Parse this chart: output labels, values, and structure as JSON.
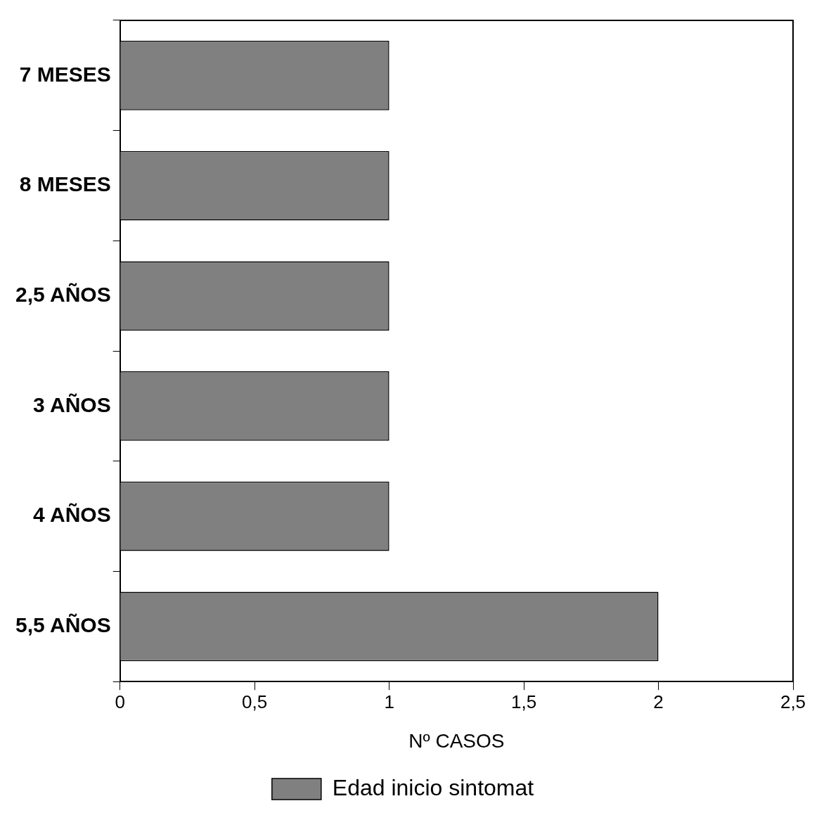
{
  "chart_data": {
    "type": "bar",
    "orientation": "horizontal",
    "categories": [
      "7 MESES",
      "8 MESES",
      "2,5 AÑOS",
      "3 AÑOS",
      "4 AÑOS",
      "5,5 AÑOS"
    ],
    "series": [
      {
        "name": "Edad inicio sintomat",
        "color": "#808080",
        "values": [
          1,
          1,
          1,
          1,
          1,
          2
        ]
      }
    ],
    "xlabel": "Nº CASOS",
    "xlim": [
      0,
      2.5
    ],
    "xticks": [
      0,
      {
        "value": 0.5,
        "label": "0,5"
      },
      1,
      {
        "value": 1.5,
        "label": "1,5"
      },
      2,
      {
        "value": 2.5,
        "label": "2,5"
      }
    ],
    "grid": false,
    "legend": "bottom"
  }
}
